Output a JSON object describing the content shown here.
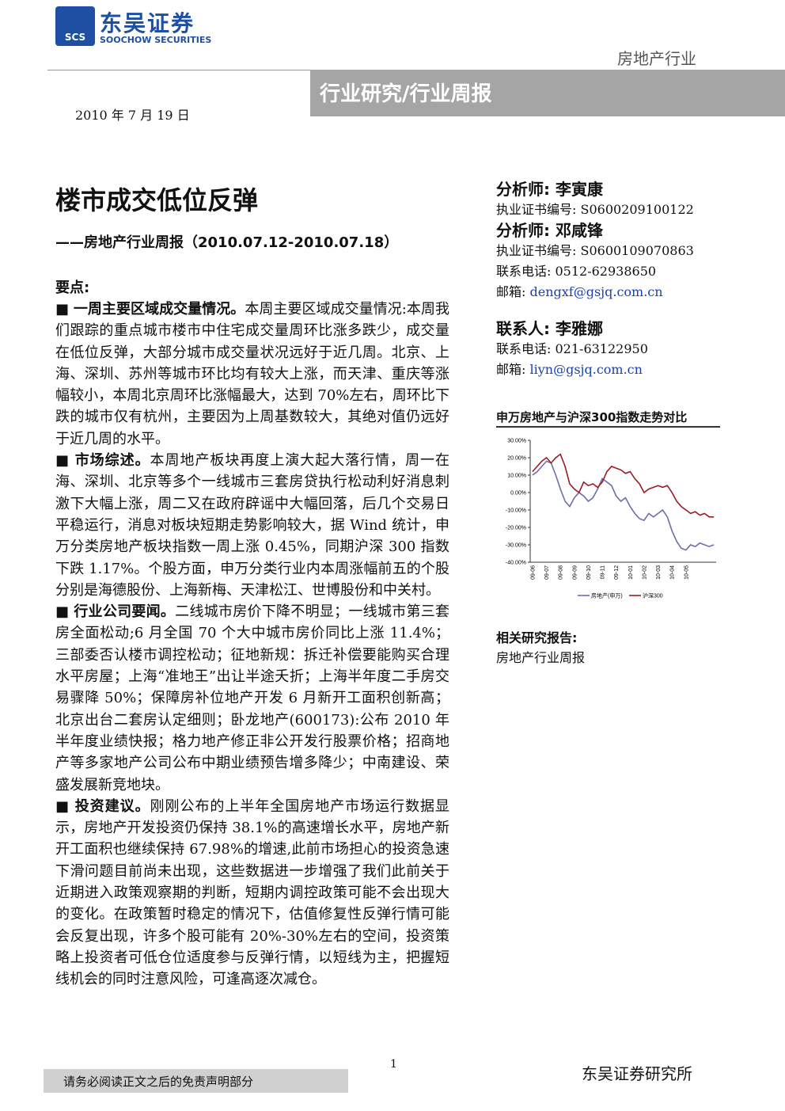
{
  "header": {
    "logo_cn": "东吴证券",
    "logo_abbr": "SCS",
    "logo_en": "SOOCHOW SECURITIES",
    "industry": "房地产行业",
    "banner": "行业研究/行业周报",
    "date": "2010 年 7 月 19 日"
  },
  "report": {
    "title": "楼市成交低位反弹",
    "subtitle": "——房地产行业周报（2010.07.12-2010.07.18）"
  },
  "key_points": {
    "heading": "要点:",
    "items": [
      {
        "label": "一周主要区域成交量情况。",
        "text": "本周主要区域成交量情况:本周我们跟踪的重点城市楼市中住宅成交量周环比涨多跌少，成交量在低位反弹，大部分城市成交量状况远好于近几周。北京、上海、深圳、苏州等城市环比均有较大上涨，而天津、重庆等涨幅较小，本周北京周环比涨幅最大，达到 70%左右，周环比下跌的城市仅有杭州，主要因为上周基数较大，其绝对值仍远好于近几周的水平。"
      },
      {
        "label": "市场综述。",
        "text": "本周地产板块再度上演大起大落行情，周一在海、深圳、北京等多个一线城市三套房贷执行松动利好消息刺激下大幅上涨，周二又在政府辟谣中大幅回落，后几个交易日平稳运行，消息对板块短期走势影响较大，据 Wind 统计，申万分类房地产板块指数一周上涨 0.45%，同期沪深 300 指数下跌 1.17%。个股方面，申万分类行业内本周涨幅前五的个股分别是海德股份、上海新梅、天津松江、世博股份和中关村。"
      },
      {
        "label": "行业公司要闻。",
        "text": "二线城市房价下降不明显；一线城市第三套房全面松动;6 月全国 70 个大中城市房价同比上涨 11.4%；三部委否认楼市调控松动；征地新规：拆迁补偿要能购买合理水平房屋；上海“准地王”出让半途夭折；上海半年度二手房交易骤降 50%；保障房补位地产开发 6 月新开工面积创新高；北京出台二套房认定细则；卧龙地产(600173):公布 2010 年半年度业绩快报；格力地产修正非公开发行股票价格；招商地产等多家地产公司公布中期业绩预告增多降少；中南建设、荣盛发展新竞地块。"
      },
      {
        "label": "投资建议。",
        "text": "刚刚公布的上半年全国房地产市场运行数据显示，房地产开发投资仍保持 38.1%的高速增长水平，房地产新开工面积也继续保持 67.98%的增速,此前市场担心的投资急速下滑问题目前尚未出现，这些数据进一步增强了我们此前关于近期进入政策观察期的判断，短期内调控政策可能不会出现大的变化。在政策暂时稳定的情况下，估值修复性反弹行情可能会反复出现，许多个股可能有 20%-30%左右的空间，投资策略上投资者可低仓位适度参与反弹行情，以短线为主，把握短线机会的同时注意风险，可逢高逐次减仓。"
      }
    ]
  },
  "sidebar": {
    "analysts": [
      {
        "label": "分析师:",
        "name": "李寅康",
        "cert_label": "执业证书编号:",
        "cert": "S0600209100122"
      },
      {
        "label": "分析师:",
        "name": "邓咸锋",
        "cert_label": "执业证书编号:",
        "cert": "S0600109070863",
        "phone_label": "联系电话:",
        "phone": "0512-62938650",
        "email_label": "邮箱:",
        "email": "dengxf@gsjq.com.cn"
      }
    ],
    "contact": {
      "label": "联系人:",
      "name": "李雅娜",
      "phone_label": "联系电话:",
      "phone": "021-63122950",
      "email_label": "邮箱:",
      "email": "liyn@gsjq.com.cn"
    },
    "related": {
      "heading": "相关研究报告:",
      "items": [
        "房地产行业周报"
      ]
    }
  },
  "chart_data": {
    "type": "line",
    "title": "申万房地产与沪深300指数走势对比",
    "categories": [
      "09-06",
      null,
      null,
      "09-07",
      null,
      null,
      "09-08",
      null,
      null,
      "09-09",
      null,
      null,
      "09-10",
      null,
      null,
      "09-11",
      null,
      null,
      "09-12",
      null,
      null,
      "10-01",
      null,
      null,
      "10-02",
      null,
      null,
      "10-03",
      null,
      null,
      "10-04",
      null,
      null,
      "10-05",
      null,
      null,
      null,
      null,
      null,
      null
    ],
    "series": [
      {
        "name": "房地产(申万)",
        "color": "#6b6fa8",
        "values": [
          10,
          12,
          15,
          18,
          17,
          10,
          2,
          -5,
          -8,
          -3,
          0,
          -2,
          -5,
          -3,
          2,
          8,
          6,
          4,
          -2,
          -5,
          -3,
          -8,
          -12,
          -15,
          -16,
          -12,
          -14,
          -12,
          -10,
          -14,
          -22,
          -28,
          -32,
          -33,
          -30,
          -31,
          -29,
          -30,
          -31,
          -30
        ]
      },
      {
        "name": "沪深300",
        "color": "#9b1c24",
        "values": [
          12,
          15,
          18,
          20,
          17,
          20,
          22,
          15,
          5,
          2,
          0,
          6,
          4,
          5,
          3,
          6,
          12,
          15,
          14,
          13,
          11,
          12,
          8,
          5,
          0,
          2,
          3,
          4,
          3,
          4,
          0,
          -5,
          -8,
          -10,
          -12,
          -11,
          -13,
          -12,
          -14,
          -14
        ]
      }
    ],
    "ylim": [
      -40,
      30
    ],
    "yticks": [
      {
        "value": 30,
        "label": "30.00%"
      },
      {
        "value": 20,
        "label": "20.00%"
      },
      {
        "value": 10,
        "label": "10.00%"
      },
      {
        "value": 0,
        "label": "0.00%"
      },
      {
        "value": -10,
        "label": "-10.00%"
      },
      {
        "value": -20,
        "label": "-20.00%"
      },
      {
        "value": -30,
        "label": "-30.00%"
      },
      {
        "value": -40,
        "label": "-40.00%"
      }
    ],
    "grid": false
  },
  "footer": {
    "disclaimer": "请务必阅读正文之后的免责声明部分",
    "page": "1",
    "institute": "东吴证券研究所"
  }
}
